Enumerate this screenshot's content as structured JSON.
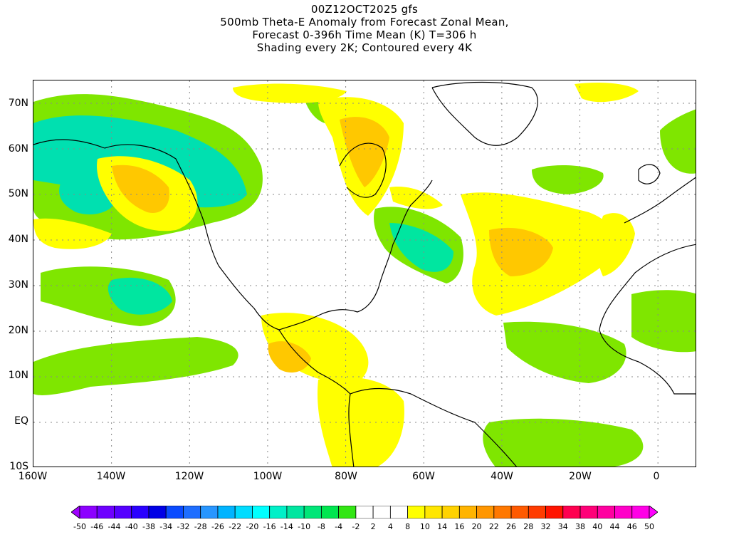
{
  "title_lines": [
    "00Z12OCT2025 gfs",
    "500mb Theta-E Anomaly from Forecast Zonal Mean,",
    "Forecast 0-396h Time Mean (K) T=306 h",
    "Shading every 2K; Contoured every 4K"
  ],
  "map": {
    "lat_labels": [
      "70N",
      "60N",
      "50N",
      "40N",
      "30N",
      "20N",
      "10N",
      "EQ",
      "10S"
    ],
    "lon_labels": [
      "160W",
      "140W",
      "120W",
      "100W",
      "80W",
      "60W",
      "40W",
      "20W",
      "0"
    ],
    "extent": {
      "lon_min": -160,
      "lon_max": 10,
      "lat_min": -10,
      "lat_max": 75
    }
  },
  "colorbar": {
    "labels": [
      "-50",
      "-46",
      "-44",
      "-40",
      "-38",
      "-34",
      "-32",
      "-28",
      "-26",
      "-22",
      "-20",
      "-16",
      "-14",
      "-10",
      "-8",
      "-4",
      "-2",
      "2",
      "4",
      "8",
      "10",
      "14",
      "16",
      "20",
      "22",
      "26",
      "28",
      "32",
      "34",
      "38",
      "40",
      "44",
      "46",
      "50"
    ],
    "colors": [
      "#a000ff",
      "#8c00ff",
      "#6e00ff",
      "#5500ff",
      "#2a00ff",
      "#0000e6",
      "#0a4bff",
      "#1e6eff",
      "#2896ff",
      "#00b4ff",
      "#00dcff",
      "#00ffff",
      "#00f0c8",
      "#00e6a0",
      "#00e678",
      "#00e650",
      "#32e614",
      "#ffffff",
      "#ffffff",
      "#ffffff",
      "#ffff00",
      "#ffe600",
      "#ffd200",
      "#ffb400",
      "#ff9600",
      "#ff7800",
      "#ff5a00",
      "#ff3c00",
      "#ff1400",
      "#ff0050",
      "#ff0078",
      "#ff00a0",
      "#ff00c8",
      "#ff00e6",
      "#ff00ff"
    ]
  }
}
